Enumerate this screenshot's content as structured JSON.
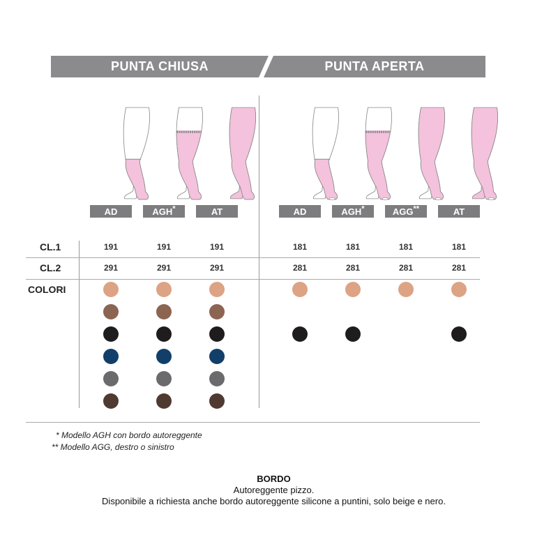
{
  "header": {
    "left": "PUNTA CHIUSA",
    "right": "PUNTA APERTA"
  },
  "rows": {
    "cl1": "CL.1",
    "cl2": "CL.2",
    "colori": "COLORI"
  },
  "colors": {
    "beige": "#dca385",
    "tan": "#8b6552",
    "black": "#1e1c1c",
    "navy": "#123f6a",
    "grey": "#6b6b6d",
    "brown": "#4f3a31",
    "pink": "#f4c2dc",
    "outline": "#888888"
  },
  "columns": [
    {
      "group": "chiusa",
      "label": "AD",
      "mark": "",
      "coverage": "knee",
      "open_toe": false,
      "cl1": "191",
      "cl2": "291",
      "swatches": [
        "beige",
        "tan",
        "black",
        "navy",
        "grey",
        "brown"
      ]
    },
    {
      "group": "chiusa",
      "label": "AGH",
      "mark": "*",
      "coverage": "thigh",
      "open_toe": false,
      "cl1": "191",
      "cl2": "291",
      "swatches": [
        "beige",
        "tan",
        "black",
        "navy",
        "grey",
        "brown"
      ]
    },
    {
      "group": "chiusa",
      "label": "AT",
      "mark": "",
      "coverage": "full",
      "open_toe": false,
      "cl1": "191",
      "cl2": "291",
      "swatches": [
        "beige",
        "tan",
        "black",
        "navy",
        "grey",
        "brown"
      ]
    },
    {
      "group": "aperta",
      "label": "AD",
      "mark": "",
      "coverage": "knee",
      "open_toe": true,
      "cl1": "181",
      "cl2": "281",
      "swatches": [
        "beige",
        null,
        "black",
        null,
        null,
        null
      ]
    },
    {
      "group": "aperta",
      "label": "AGH",
      "mark": "*",
      "coverage": "thigh",
      "open_toe": true,
      "cl1": "181",
      "cl2": "281",
      "swatches": [
        "beige",
        null,
        "black",
        null,
        null,
        null
      ]
    },
    {
      "group": "aperta",
      "label": "AGG",
      "mark": "**",
      "coverage": "hip",
      "open_toe": true,
      "cl1": "181",
      "cl2": "281",
      "swatches": [
        "beige",
        null,
        null,
        null,
        null,
        null
      ]
    },
    {
      "group": "aperta",
      "label": "AT",
      "mark": "",
      "coverage": "full",
      "open_toe": true,
      "cl1": "181",
      "cl2": "281",
      "swatches": [
        "beige",
        null,
        "black",
        null,
        null,
        null
      ]
    }
  ],
  "notes": [
    "*  Modello AGH con bordo autoreggente",
    "**  Modello AGG, destro o sinistro"
  ],
  "bordo": {
    "title": "BORDO",
    "line1": "Autoreggente pizzo.",
    "line2": "Disponibile a richiesta anche bordo autoreggente silicone a puntini, solo beige e nero."
  }
}
